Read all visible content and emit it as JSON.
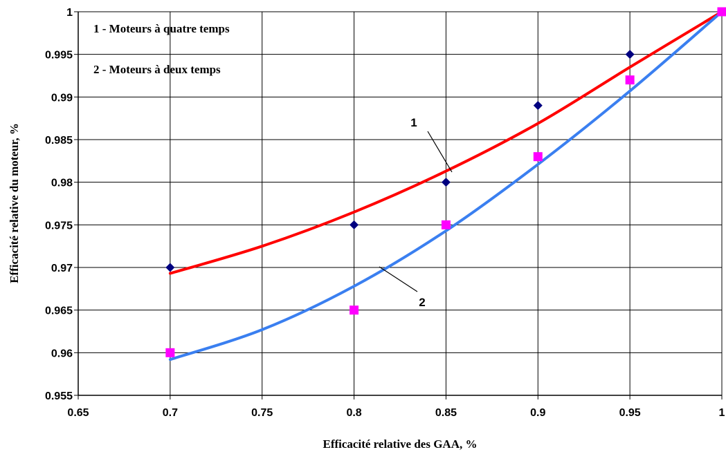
{
  "chart_data": {
    "type": "scatter",
    "xlabel": "Efficacité relative des GAA, %",
    "ylabel": "Efficacité relative du moteur, %",
    "xlim": [
      0.65,
      1.0
    ],
    "ylim": [
      0.955,
      1.0
    ],
    "x_ticks": [
      "0.65",
      "0.7",
      "0.75",
      "0.8",
      "0.85",
      "0.9",
      "0.95",
      "1"
    ],
    "y_ticks": [
      "0.955",
      "0.96",
      "0.965",
      "0.97",
      "0.975",
      "0.98",
      "0.985",
      "0.99",
      "0.995",
      "1"
    ],
    "grid": true,
    "legend_entries": [
      "1 - Moteurs à quatre temps",
      "2 - Moteurs à deux temps"
    ],
    "series": [
      {
        "label": "1",
        "marker": "diamond",
        "marker_color": "#000080",
        "trend_color": "#ff0000",
        "points": [
          [
            0.7,
            0.97
          ],
          [
            0.8,
            0.975
          ],
          [
            0.85,
            0.98
          ],
          [
            0.9,
            0.989
          ],
          [
            0.95,
            0.995
          ],
          [
            1.0,
            1.0
          ]
        ],
        "trend": [
          [
            0.7,
            0.9693
          ],
          [
            0.75,
            0.9725
          ],
          [
            0.8,
            0.9765
          ],
          [
            0.85,
            0.9813
          ],
          [
            0.9,
            0.9869
          ],
          [
            0.95,
            0.9935
          ],
          [
            1.0,
            1.0
          ]
        ]
      },
      {
        "label": "2",
        "marker": "square",
        "marker_color": "#ff00ff",
        "trend_color": "#3a7ff0",
        "points": [
          [
            0.7,
            0.96
          ],
          [
            0.8,
            0.965
          ],
          [
            0.85,
            0.975
          ],
          [
            0.9,
            0.983
          ],
          [
            0.95,
            0.992
          ],
          [
            1.0,
            1.0
          ]
        ],
        "trend": [
          [
            0.7,
            0.9592
          ],
          [
            0.75,
            0.9627
          ],
          [
            0.8,
            0.9678
          ],
          [
            0.85,
            0.9743
          ],
          [
            0.9,
            0.9821
          ],
          [
            0.95,
            0.9907
          ],
          [
            1.0,
            1.0
          ]
        ]
      }
    ]
  }
}
